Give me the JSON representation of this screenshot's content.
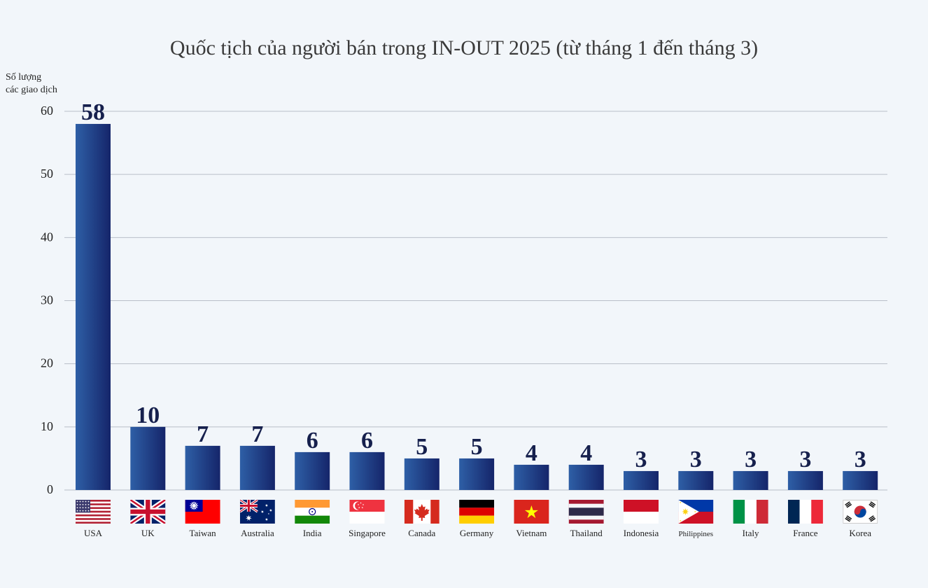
{
  "chart_data": {
    "type": "bar",
    "title": "Quốc tịch của người bán trong IN-OUT 2025 (từ tháng 1 đến tháng 3)",
    "ylabel_lines": [
      "Số lượng",
      "các giao dịch"
    ],
    "ylim": [
      0,
      60
    ],
    "yticks": [
      "0",
      "10",
      "20",
      "30",
      "40",
      "50",
      "60"
    ],
    "grid": true,
    "categories": [
      "USA",
      "UK",
      "Taiwan",
      "Australia",
      "India",
      "Singapore",
      "Canada",
      "Germany",
      "Vietnam",
      "Thailand",
      "Indonesia",
      "Philippines",
      "Italy",
      "France",
      "Korea"
    ],
    "values": [
      58,
      10,
      7,
      7,
      6,
      6,
      5,
      5,
      4,
      4,
      3,
      3,
      3,
      3,
      3
    ],
    "flag_icons": [
      "usa-flag-icon",
      "uk-flag-icon",
      "taiwan-flag-icon",
      "australia-flag-icon",
      "india-flag-icon",
      "singapore-flag-icon",
      "canada-flag-icon",
      "germany-flag-icon",
      "vietnam-flag-icon",
      "thailand-flag-icon",
      "indonesia-flag-icon",
      "philippines-flag-icon",
      "italy-flag-icon",
      "france-flag-icon",
      "korea-flag-icon"
    ]
  },
  "colors": {
    "bar_dark": "#15256a",
    "bar_light": "#2e5fa6",
    "grid": "#b8bec8",
    "label": "#16204d"
  }
}
